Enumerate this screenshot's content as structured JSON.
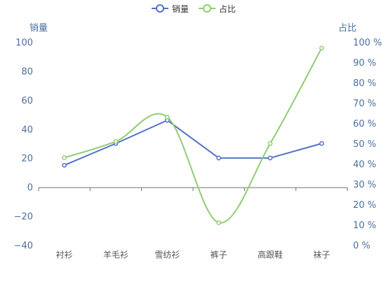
{
  "chart_data": {
    "type": "line",
    "categories": [
      "衬衫",
      "羊毛衫",
      "雪纺衫",
      "裤子",
      "高跟鞋",
      "袜子"
    ],
    "series": [
      {
        "name": "销量",
        "axis": "left",
        "values": [
          15,
          30,
          46,
          20,
          20,
          30
        ],
        "color": "#5470c6",
        "smooth": false
      },
      {
        "name": "占比",
        "axis": "right",
        "values": [
          43,
          51,
          63,
          11,
          50,
          97
        ],
        "color": "#91cc75",
        "smooth": true
      }
    ],
    "y_left": {
      "label": "销量",
      "min": -40,
      "max": 100,
      "ticks": [
        -40,
        -20,
        0,
        20,
        40,
        60,
        80,
        100
      ]
    },
    "y_right": {
      "label": "占比",
      "min": 0,
      "max": 100,
      "ticks": [
        0,
        10,
        20,
        30,
        40,
        50,
        60,
        70,
        80,
        90,
        100
      ],
      "tick_suffix": " %"
    },
    "legend_position": "top-center",
    "grid": false,
    "text_color": "#4a6fa0",
    "axis_color": "#6e7079"
  }
}
